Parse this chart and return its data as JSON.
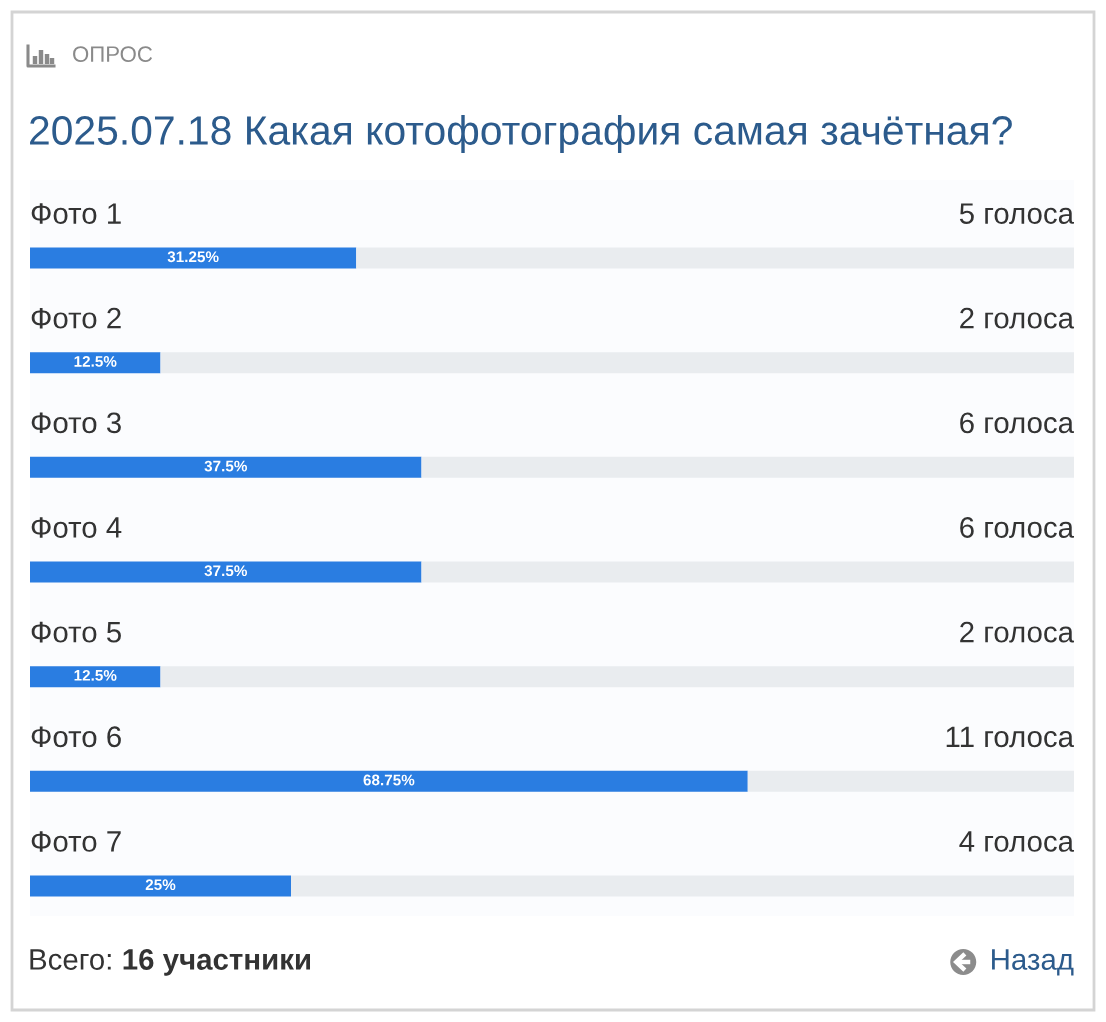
{
  "chart_data": {
    "type": "bar",
    "orientation": "horizontal",
    "stacked": true,
    "subtitle": "ОПРОС",
    "title": "2025.07.18 Какая котофотография самая зачётная?",
    "categories": [
      "Фото 1",
      "Фото 2",
      "Фото 3",
      "Фото 4",
      "Фото 5",
      "Фото 6",
      "Фото 7"
    ],
    "series": [
      {
        "color": "#2a7de1",
        "values": [
          31.25,
          12.5,
          37.5,
          37.5,
          12.5,
          68.75,
          25
        ],
        "value_labels": [
          "31.25%",
          "12.5%",
          "37.5%",
          "37.5%",
          "12.5%",
          "68.75%",
          "25%"
        ]
      },
      {
        "color": "#e9ecef",
        "values": [
          68.75,
          87.5,
          62.5,
          62.5,
          87.5,
          31.25,
          75
        ]
      }
    ],
    "xlim": [
      0,
      100
    ],
    "tick_labels": "y",
    "annotations": [
      "5 голоса",
      "2 голоса",
      "6 голоса",
      "6 голоса",
      "2 голоса",
      "11 голоса",
      "4 голоса",
      "Всего:",
      "16 участники",
      "Назад"
    ]
  }
}
